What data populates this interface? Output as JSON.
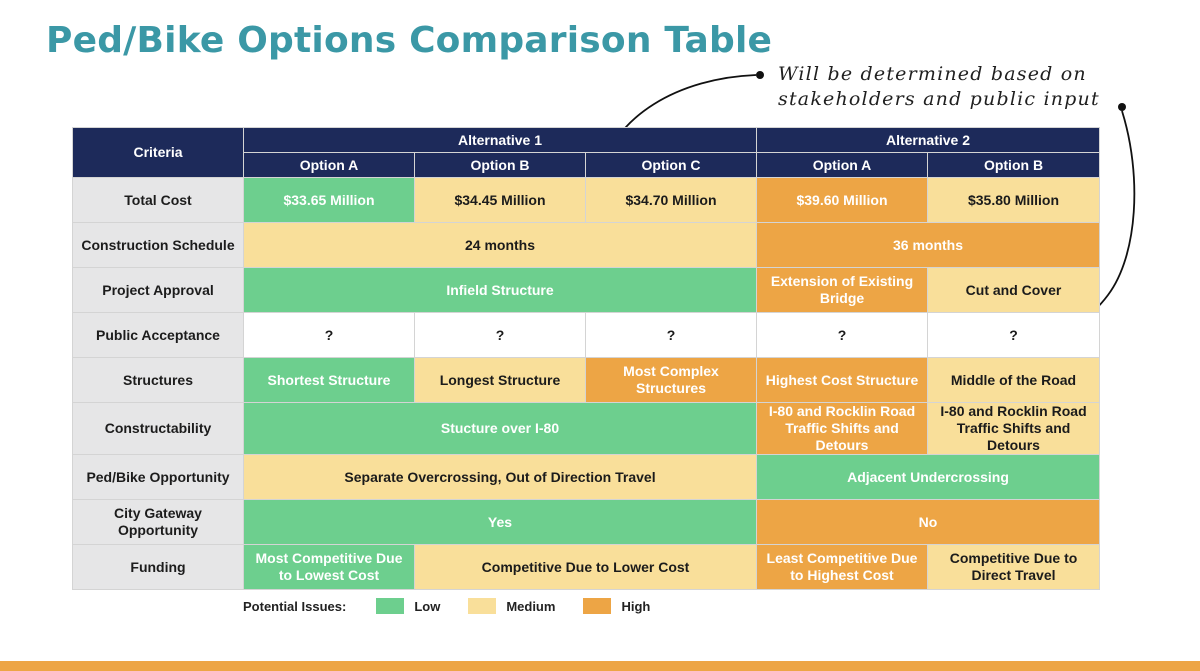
{
  "title": "Ped/Bike Options Comparison Table",
  "annotation": {
    "line1": "Will be determined based on",
    "line2": "stakeholders and public input"
  },
  "table": {
    "criteria_header": "Criteria",
    "alternatives": [
      "Alternative 1",
      "Alternative 2"
    ],
    "options": [
      "Option A",
      "Option B",
      "Option C",
      "Option A",
      "Option B"
    ],
    "rows": [
      {
        "criteria": "Total Cost",
        "cells": [
          {
            "text": "$33.65 Million",
            "level": "low"
          },
          {
            "text": "$34.45 Million",
            "level": "medium"
          },
          {
            "text": "$34.70 Million",
            "level": "medium"
          },
          {
            "text": "$39.60 Million",
            "level": "high"
          },
          {
            "text": "$35.80 Million",
            "level": "medium"
          }
        ]
      },
      {
        "criteria": "Construction Schedule",
        "cells": [
          {
            "text": "24 months",
            "level": "medium"
          },
          {
            "text": "36 months",
            "level": "high"
          }
        ]
      },
      {
        "criteria": "Project Approval",
        "cells": [
          {
            "text": "Infield Structure",
            "level": "low"
          },
          {
            "text": "Extension of Existing Bridge",
            "level": "high"
          },
          {
            "text": "Cut and Cover",
            "level": "medium"
          }
        ]
      },
      {
        "criteria": "Public Acceptance",
        "cells": [
          {
            "text": "?",
            "level": "none"
          },
          {
            "text": "?",
            "level": "none"
          },
          {
            "text": "?",
            "level": "none"
          },
          {
            "text": "?",
            "level": "none"
          },
          {
            "text": "?",
            "level": "none"
          }
        ]
      },
      {
        "criteria": "Structures",
        "cells": [
          {
            "text": "Shortest Structure",
            "level": "low"
          },
          {
            "text": "Longest Structure",
            "level": "medium"
          },
          {
            "text": "Most Complex Structures",
            "level": "high"
          },
          {
            "text": "Highest Cost Structure",
            "level": "high"
          },
          {
            "text": "Middle of the Road",
            "level": "medium"
          }
        ]
      },
      {
        "criteria": "Constructability",
        "cells": [
          {
            "text": "Stucture over I-80",
            "level": "low"
          },
          {
            "text": "I-80 and Rocklin Road Traffic Shifts and Detours",
            "level": "high"
          },
          {
            "text": "I-80 and Rocklin Road Traffic Shifts and Detours",
            "level": "medium"
          }
        ]
      },
      {
        "criteria": "Ped/Bike Opportunity",
        "cells": [
          {
            "text": "Separate Overcrossing, Out of Direction Travel",
            "level": "medium"
          },
          {
            "text": "Adjacent Undercrossing",
            "level": "low"
          }
        ]
      },
      {
        "criteria": "City Gateway Opportunity",
        "cells": [
          {
            "text": "Yes",
            "level": "low"
          },
          {
            "text": "No",
            "level": "high"
          }
        ]
      },
      {
        "criteria": "Funding",
        "cells": [
          {
            "text": "Most Competitive Due to Lowest Cost",
            "level": "low"
          },
          {
            "text": "Competitive Due to Lower Cost",
            "level": "medium"
          },
          {
            "text": "Least Competitive Due to Highest Cost",
            "level": "high"
          },
          {
            "text": "Competitive Due to Direct Travel",
            "level": "medium"
          }
        ]
      }
    ]
  },
  "legend": {
    "caption": "Potential Issues:",
    "items": [
      {
        "label": "Low",
        "color": "#6dcf8e"
      },
      {
        "label": "Medium",
        "color": "#f9df9a"
      },
      {
        "label": "High",
        "color": "#eda545"
      }
    ]
  },
  "colors": {
    "title": "#3b98a6",
    "header": "#1d2a5a",
    "low": "#6dcf8e",
    "medium": "#f9df9a",
    "high": "#eda545",
    "bottom_bar": "#eda545"
  }
}
